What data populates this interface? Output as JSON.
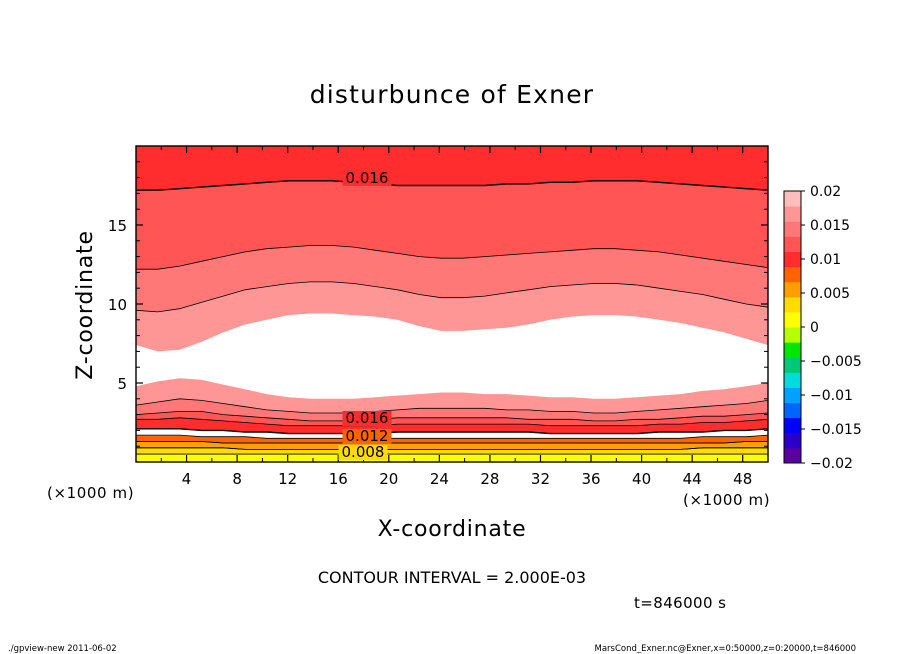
{
  "chart_data": {
    "type": "heatmap",
    "title": "disturbunce of Exner",
    "xlabel": "X-coordinate",
    "ylabel": "Z-coordinate",
    "x_unit": "(×1000 m)",
    "y_unit": "(×1000 m)",
    "xlim": [
      0,
      50
    ],
    "ylim": [
      0,
      20
    ],
    "x_ticks": [
      "4",
      "8",
      "12",
      "16",
      "20",
      "24",
      "28",
      "32",
      "36",
      "40",
      "44",
      "48"
    ],
    "y_ticks": [
      "5",
      "10",
      "15"
    ],
    "contour_interval_text": "CONTOUR INTERVAL = 2.000E-03",
    "time_text": "t=846000 s",
    "contour_labels": [
      "0.016",
      "0.016",
      "0.012",
      "0.008"
    ],
    "colorbar": {
      "labels": [
        "0.02",
        "0.015",
        "0.01",
        "0.005",
        "0",
        "−0.005",
        "−0.01",
        "−0.015",
        "−0.02"
      ],
      "colors": [
        "#5a00a0",
        "#2a00c8",
        "#0000ff",
        "#0064ff",
        "#00a0ff",
        "#00dcdc",
        "#00c878",
        "#00e600",
        "#b4ff00",
        "#ffff00",
        "#ffdc00",
        "#ffa000",
        "#ff6400",
        "#ff2d2d",
        "#ff5555",
        "#ff7878",
        "#ff9696",
        "#ffbebe"
      ]
    },
    "bands": [
      {
        "level": 0.002,
        "color": "#ffffff",
        "top": [
          7.4,
          7.0,
          7.1,
          7.6,
          8.2,
          8.7,
          9.0,
          9.3,
          9.4,
          9.4,
          9.3,
          9.2,
          9.0,
          8.6,
          8.3,
          8.3,
          8.4,
          8.5,
          8.7,
          9.0,
          9.2,
          9.3,
          9.3,
          9.2,
          9.0,
          8.8,
          8.5,
          8.2,
          7.8,
          7.4
        ],
        "bottom": [
          4.8,
          5.1,
          5.3,
          5.2,
          4.9,
          4.6,
          4.3,
          4.1,
          4.0,
          4.0,
          4.0,
          4.1,
          4.2,
          4.3,
          4.4,
          4.4,
          4.3,
          4.3,
          4.2,
          4.1,
          4.1,
          4.0,
          4.0,
          4.1,
          4.2,
          4.3,
          4.5,
          4.6,
          4.8,
          5.0
        ]
      },
      {
        "level": 0.004,
        "color": "#ff9696",
        "top": [
          9.6,
          9.5,
          9.7,
          10.1,
          10.5,
          10.9,
          11.1,
          11.3,
          11.4,
          11.4,
          11.3,
          11.1,
          10.9,
          10.6,
          10.4,
          10.4,
          10.5,
          10.7,
          10.9,
          11.1,
          11.2,
          11.3,
          11.3,
          11.2,
          11.0,
          10.8,
          10.6,
          10.3,
          10.0,
          9.8
        ],
        "bottom": [
          3.6,
          3.8,
          4.0,
          3.9,
          3.7,
          3.5,
          3.3,
          3.2,
          3.1,
          3.1,
          3.1,
          3.2,
          3.3,
          3.4,
          3.4,
          3.4,
          3.4,
          3.3,
          3.3,
          3.2,
          3.2,
          3.1,
          3.1,
          3.2,
          3.3,
          3.4,
          3.5,
          3.6,
          3.7,
          3.9
        ]
      },
      {
        "level": 0.006,
        "color": "#ff7878",
        "top": [
          12.2,
          12.2,
          12.4,
          12.7,
          13.0,
          13.3,
          13.5,
          13.6,
          13.7,
          13.7,
          13.6,
          13.4,
          13.2,
          13.0,
          12.9,
          12.9,
          13.0,
          13.1,
          13.2,
          13.3,
          13.4,
          13.5,
          13.5,
          13.4,
          13.3,
          13.1,
          12.9,
          12.7,
          12.5,
          12.3
        ],
        "bottom": [
          3.0,
          3.1,
          3.2,
          3.2,
          3.0,
          2.9,
          2.8,
          2.7,
          2.6,
          2.6,
          2.6,
          2.7,
          2.8,
          2.8,
          2.8,
          2.8,
          2.8,
          2.8,
          2.7,
          2.7,
          2.7,
          2.6,
          2.6,
          2.7,
          2.7,
          2.8,
          2.9,
          2.9,
          3.0,
          3.1
        ]
      },
      {
        "level": 0.008,
        "color": "#ff5555",
        "top": [
          17.2,
          17.2,
          17.3,
          17.4,
          17.5,
          17.6,
          17.7,
          17.8,
          17.8,
          17.8,
          17.7,
          17.6,
          17.5,
          17.5,
          17.5,
          17.5,
          17.5,
          17.6,
          17.6,
          17.7,
          17.7,
          17.8,
          17.8,
          17.8,
          17.7,
          17.6,
          17.5,
          17.4,
          17.3,
          17.2
        ],
        "bottom": [
          2.7,
          2.7,
          2.8,
          2.7,
          2.6,
          2.5,
          2.4,
          2.3,
          2.3,
          2.3,
          2.3,
          2.3,
          2.4,
          2.4,
          2.4,
          2.4,
          2.4,
          2.4,
          2.4,
          2.3,
          2.3,
          2.3,
          2.3,
          2.3,
          2.4,
          2.4,
          2.5,
          2.5,
          2.6,
          2.7
        ]
      },
      {
        "level": 0.01,
        "color": "#ff2d2d",
        "top": [
          20,
          20,
          20,
          20,
          20,
          20,
          20,
          20,
          20,
          20,
          20,
          20,
          20,
          20,
          20,
          20,
          20,
          20,
          20,
          20,
          20,
          20,
          20,
          20,
          20,
          20,
          20,
          20,
          20,
          20
        ],
        "bottom": [
          2.1,
          2.1,
          2.1,
          2.0,
          2.0,
          1.9,
          1.9,
          1.8,
          1.8,
          1.8,
          1.8,
          1.8,
          1.9,
          1.9,
          1.9,
          1.9,
          1.9,
          1.9,
          1.9,
          1.8,
          1.8,
          1.8,
          1.8,
          1.8,
          1.9,
          1.9,
          1.9,
          2.0,
          2.0,
          2.1
        ]
      },
      {
        "level": 0.012,
        "color": "#ff6400",
        "top": [
          1.7,
          1.7,
          1.7,
          1.6,
          1.6,
          1.6,
          1.5,
          1.5,
          1.5,
          1.5,
          1.5,
          1.5,
          1.5,
          1.5,
          1.5,
          1.5,
          1.5,
          1.5,
          1.5,
          1.5,
          1.5,
          1.5,
          1.5,
          1.5,
          1.5,
          1.5,
          1.6,
          1.6,
          1.6,
          1.7
        ],
        "bottom": [
          1.3,
          1.3,
          1.3,
          1.3,
          1.2,
          1.2,
          1.2,
          1.2,
          1.2,
          1.2,
          1.2,
          1.2,
          1.2,
          1.2,
          1.2,
          1.2,
          1.2,
          1.2,
          1.2,
          1.2,
          1.2,
          1.2,
          1.2,
          1.2,
          1.2,
          1.2,
          1.2,
          1.2,
          1.3,
          1.3
        ]
      },
      {
        "level": 0.014,
        "color": "#ffa000",
        "top": [
          1.3,
          1.3,
          1.3,
          1.3,
          1.2,
          1.2,
          1.2,
          1.2,
          1.2,
          1.2,
          1.2,
          1.2,
          1.2,
          1.2,
          1.2,
          1.2,
          1.2,
          1.2,
          1.2,
          1.2,
          1.2,
          1.2,
          1.2,
          1.2,
          1.2,
          1.2,
          1.2,
          1.2,
          1.3,
          1.3
        ],
        "bottom": [
          0.9,
          0.9,
          0.9,
          0.9,
          0.9,
          0.8,
          0.8,
          0.8,
          0.8,
          0.8,
          0.8,
          0.8,
          0.8,
          0.8,
          0.8,
          0.8,
          0.8,
          0.8,
          0.8,
          0.8,
          0.8,
          0.8,
          0.8,
          0.8,
          0.8,
          0.8,
          0.9,
          0.9,
          0.9,
          0.9
        ]
      },
      {
        "level": 0.016,
        "color": "#ffdc00",
        "top": [
          0.9,
          0.9,
          0.9,
          0.9,
          0.9,
          0.8,
          0.8,
          0.8,
          0.8,
          0.8,
          0.8,
          0.8,
          0.8,
          0.8,
          0.8,
          0.8,
          0.8,
          0.8,
          0.8,
          0.8,
          0.8,
          0.8,
          0.8,
          0.8,
          0.8,
          0.8,
          0.9,
          0.9,
          0.9,
          0.9
        ],
        "bottom": [
          0.5,
          0.5,
          0.5,
          0.5,
          0.5,
          0.5,
          0.5,
          0.5,
          0.5,
          0.5,
          0.5,
          0.5,
          0.5,
          0.5,
          0.5,
          0.5,
          0.5,
          0.5,
          0.5,
          0.5,
          0.5,
          0.5,
          0.5,
          0.5,
          0.5,
          0.5,
          0.5,
          0.5,
          0.5,
          0.5
        ]
      },
      {
        "level": 0.018,
        "color": "#ffff00",
        "top": [
          0.5,
          0.5,
          0.5,
          0.5,
          0.5,
          0.5,
          0.5,
          0.5,
          0.5,
          0.5,
          0.5,
          0.5,
          0.5,
          0.5,
          0.5,
          0.5,
          0.5,
          0.5,
          0.5,
          0.5,
          0.5,
          0.5,
          0.5,
          0.5,
          0.5,
          0.5,
          0.5,
          0.5,
          0.5,
          0.5
        ],
        "bottom": [
          0,
          0,
          0,
          0,
          0,
          0,
          0,
          0,
          0,
          0,
          0,
          0,
          0,
          0,
          0,
          0,
          0,
          0,
          0,
          0,
          0,
          0,
          0,
          0,
          0,
          0,
          0,
          0,
          0,
          0
        ]
      }
    ]
  },
  "footer": {
    "left": "./gpview-new   2011-06-02",
    "right": "MarsCond_Exner.nc@Exner,x=0:50000,z=0:20000,t=846000"
  }
}
